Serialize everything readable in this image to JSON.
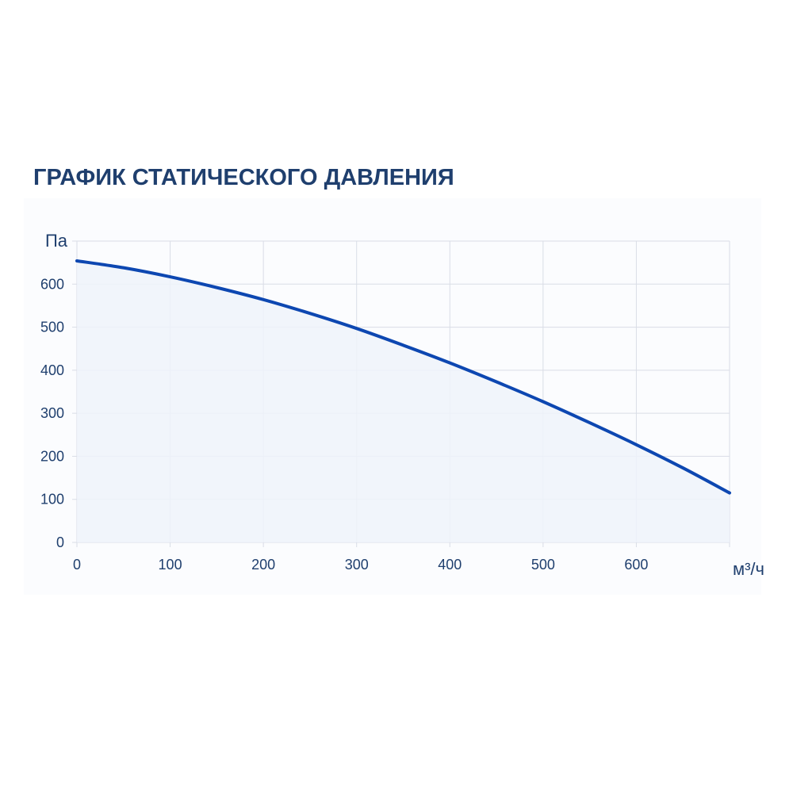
{
  "chart_data": {
    "type": "area",
    "title": "ГРАФИК СТАТИЧЕСКОГО ДАВЛЕНИЯ",
    "ylabel": "Па",
    "xlabel": "м³/ч",
    "xlim": [
      0,
      700
    ],
    "ylim": [
      0,
      700
    ],
    "x_ticks": [
      "0",
      "100",
      "200",
      "300",
      "400",
      "500",
      "600"
    ],
    "y_ticks": [
      "0",
      "100",
      "200",
      "300",
      "400",
      "500",
      "600"
    ],
    "grid": true,
    "series": [
      {
        "x": [
          0,
          50,
          100,
          150,
          200,
          250,
          300,
          350,
          400,
          450,
          500,
          550,
          600,
          650,
          700
        ],
        "y": [
          654,
          638,
          617,
          592,
          564,
          532,
          497,
          458,
          417,
          373,
          327,
          278,
          227,
          173,
          115
        ]
      }
    ],
    "colors": {
      "line": "#0d47b1",
      "fill": "#eef3fa",
      "grid": "#d9dde6",
      "text": "#1f3f6e"
    }
  }
}
